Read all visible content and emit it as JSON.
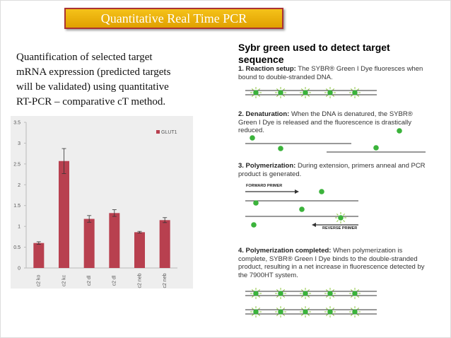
{
  "slide_title": "Quantitative Real Time PCR",
  "intro_lines": [
    "Quantification of  selected target",
    "mRNA expression (predicted targets",
    "will be validated) using quantitative",
    "RT-PCR – comparative cT method."
  ],
  "chart_data": {
    "type": "bar",
    "categories": [
      "c2 ko",
      "c2 kc",
      "c2 dl",
      "c2 dl",
      "c2 neb",
      "c2 neb"
    ],
    "series": [
      {
        "name": "GLUT1",
        "color": "#b8404f",
        "values": [
          0.6,
          2.57,
          1.18,
          1.32,
          0.86,
          1.15
        ],
        "errors": [
          0.03,
          0.3,
          0.08,
          0.08,
          0.02,
          0.06
        ]
      }
    ],
    "ylim": [
      0,
      3.5
    ],
    "yticks": [
      0,
      0.5,
      1,
      1.5,
      2,
      2.5,
      3,
      3.5
    ]
  },
  "sybr": {
    "heading_lines": [
      "Sybr green used to detect target",
      "sequence"
    ],
    "steps": [
      {
        "label": "1. Reaction setup:",
        "text": "The SYBR® Green I Dye fluoresces when bound to double-stranded DNA."
      },
      {
        "label": "2. Denaturation:",
        "text": "When the DNA is denatured, the SYBR® Green I Dye is released and the fluorescence is drastically reduced."
      },
      {
        "label": "3. Polymerization:",
        "text": "During extension, primers anneal and PCR product is generated."
      },
      {
        "label": "4. Polymerization completed:",
        "text": "When polymerization is complete, SYBR® Green I Dye binds to the double-stranded product, resulting in a net increase in fluorescence detected by the 7900HT system."
      }
    ],
    "forward_primer": "FORWARD PRIMER",
    "reverse_primer": "REVERSE PRIMER"
  }
}
